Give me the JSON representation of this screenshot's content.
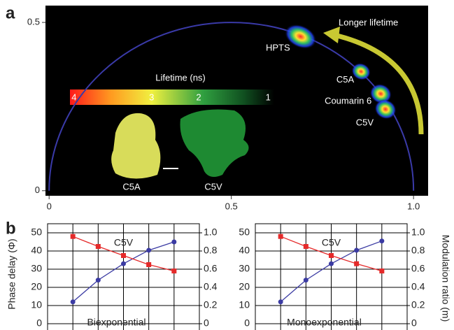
{
  "chart_data": [
    {
      "type": "phasor",
      "panel_label": "a",
      "xlim": [
        -0.01,
        1.04
      ],
      "xticks": [
        0,
        0.5,
        {
          "value": 1,
          "label": "1.0"
        }
      ],
      "ylim": [
        -0.015,
        0.55
      ],
      "yticks": [
        0,
        0.5
      ],
      "points": [
        {
          "label": "HPTS",
          "x": 0.69,
          "y": 0.458
        },
        {
          "label": "C5A",
          "x": 0.856,
          "y": 0.354
        },
        {
          "label": "Coumarin 6",
          "x": 0.91,
          "y": 0.288
        },
        {
          "label": "C5V",
          "x": 0.923,
          "y": 0.242
        }
      ],
      "arrow_label": "Longer lifetime",
      "colorbar": {
        "title": "Lifetime (ns)",
        "ticks": [
          4,
          3,
          2,
          1
        ]
      },
      "image_labels": [
        "C5A",
        "C5V"
      ]
    },
    {
      "type": "line",
      "panel_label": "b",
      "ylabel": "Phase delay (Φ)",
      "annotations": [
        "C5V",
        "Biexponential"
      ],
      "categories": [
        null,
        null,
        null,
        null,
        null
      ],
      "ylim": [
        0,
        55
      ],
      "yticks": [
        0,
        10,
        20,
        30,
        40,
        50
      ],
      "y2lim": [
        0,
        1.1
      ],
      "y2ticks": [
        0,
        0.2,
        0.4,
        0.6,
        0.8,
        {
          "value": 1,
          "label": "1.0"
        }
      ],
      "grid": true,
      "series": [
        {
          "color": "#3b3ba3",
          "values": [
            12,
            24,
            33,
            40.4,
            45
          ]
        },
        {
          "color": "#e52a2a",
          "axis": "y2",
          "values": [
            0.96,
            0.85,
            0.75,
            0.65,
            0.58
          ]
        }
      ]
    },
    {
      "type": "line",
      "y2label": "Modulation ratio (m)",
      "annotations": [
        "C5V",
        "Monoexponential"
      ],
      "categories": [
        null,
        null,
        null,
        null,
        null
      ],
      "ylim": [
        0,
        55
      ],
      "yticks": [
        0,
        10,
        20,
        30,
        40,
        50
      ],
      "y2lim": [
        0,
        1.1
      ],
      "y2ticks": [
        0,
        0.2,
        0.4,
        0.6,
        0.8,
        {
          "value": 1,
          "label": "1.0"
        }
      ],
      "grid": true,
      "series": [
        {
          "color": "#3b3ba3",
          "values": [
            12,
            24,
            33,
            40.4,
            45.5
          ]
        },
        {
          "color": "#e52a2a",
          "axis": "y2",
          "values": [
            0.96,
            0.85,
            0.75,
            0.66,
            0.58
          ]
        }
      ]
    }
  ]
}
